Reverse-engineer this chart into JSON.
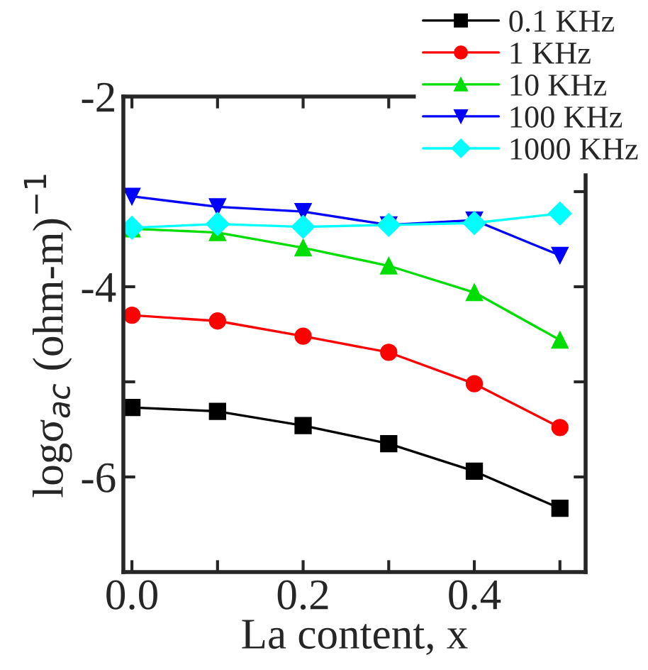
{
  "chart_data": {
    "type": "line",
    "xlabel": "La content, x",
    "ylabel": "logσ$_{ac}$ (ohm-m)$^{−1}$",
    "x": [
      0.0,
      0.1,
      0.2,
      0.3,
      0.4,
      0.5
    ],
    "series": [
      {
        "name": "0.1 KHz",
        "color": "#000000",
        "marker": "square",
        "values": [
          -5.27,
          -5.31,
          -5.46,
          -5.65,
          -5.94,
          -6.33
        ]
      },
      {
        "name": "1 KHz",
        "color": "#ff0000",
        "marker": "circle",
        "values": [
          -4.3,
          -4.36,
          -4.52,
          -4.69,
          -5.02,
          -5.48
        ]
      },
      {
        "name": "10 KHz",
        "color": "#00dd00",
        "marker": "triangle",
        "values": [
          -3.39,
          -3.43,
          -3.59,
          -3.78,
          -4.06,
          -4.56
        ]
      },
      {
        "name": "100 KHz",
        "color": "#0000ff",
        "marker": "triangle_down",
        "values": [
          -3.05,
          -3.16,
          -3.21,
          -3.35,
          -3.3,
          -3.67
        ]
      },
      {
        "name": "1000 KHz",
        "color": "#00ffff",
        "marker": "diamond",
        "values": [
          -3.38,
          -3.34,
          -3.37,
          -3.35,
          -3.33,
          -3.23
        ]
      }
    ],
    "xlim": [
      -0.01,
      0.53
    ],
    "ylim": [
      -7,
      -2
    ],
    "xticks": [
      {
        "value": 0.0,
        "label": "0.0"
      },
      {
        "value": 0.1,
        "label": null
      },
      {
        "value": 0.2,
        "label": "0.2"
      },
      {
        "value": 0.3,
        "label": null
      },
      {
        "value": 0.4,
        "label": "0.4"
      },
      {
        "value": 0.5,
        "label": null
      }
    ],
    "yticks": [
      {
        "value": -7,
        "label": null
      },
      {
        "value": -6,
        "label": "-6"
      },
      {
        "value": -5,
        "label": null
      },
      {
        "value": -4,
        "label": "-4"
      },
      {
        "value": -3,
        "label": null
      },
      {
        "value": -2,
        "label": "-2"
      }
    ],
    "legend": "top right",
    "grid": false,
    "line_style": "solid"
  }
}
